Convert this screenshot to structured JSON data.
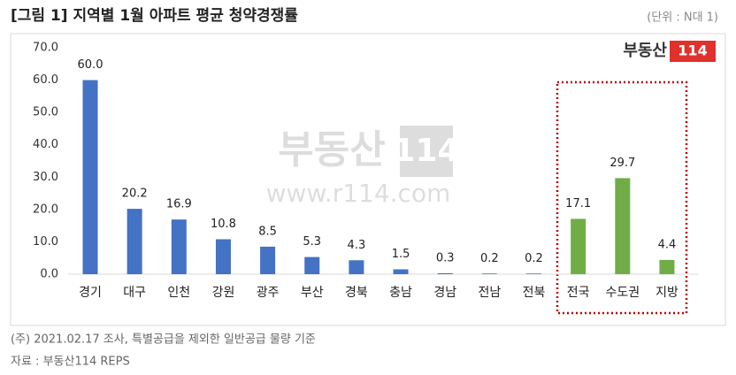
{
  "chart_data": {
    "type": "bar",
    "title": "[그림 1] 지역별 1월 아파트 평균 청약경쟁률",
    "subtitle": "(단위 : N대 1)",
    "categories": [
      "경기",
      "대구",
      "인천",
      "강원",
      "광주",
      "부산",
      "경북",
      "충남",
      "경남",
      "전남",
      "전북",
      "전국",
      "수도권",
      "지방"
    ],
    "values": [
      60.0,
      20.2,
      16.9,
      10.8,
      8.5,
      5.3,
      4.3,
      1.5,
      0.3,
      0.2,
      0.2,
      17.1,
      29.7,
      4.4
    ],
    "value_labels": [
      "60.0",
      "20.2",
      "16.9",
      "10.8",
      "8.5",
      "5.3",
      "4.3",
      "1.5",
      "0.3",
      "0.2",
      "0.2",
      "17.1",
      "29.7",
      "4.4"
    ],
    "colors": [
      "#4472c4",
      "#4472c4",
      "#4472c4",
      "#4472c4",
      "#4472c4",
      "#4472c4",
      "#4472c4",
      "#4472c4",
      "#4472c4",
      "#4472c4",
      "#4472c4",
      "#70ad47",
      "#70ad47",
      "#70ad47"
    ],
    "ylim": [
      0,
      70
    ],
    "yticks": [
      {
        "value": 0,
        "label": "0.0"
      },
      {
        "value": 10,
        "label": "10.0"
      },
      {
        "value": 20,
        "label": "20.0"
      },
      {
        "value": 30,
        "label": "30.0"
      },
      {
        "value": 40,
        "label": "40.0"
      },
      {
        "value": 50,
        "label": "50.0"
      },
      {
        "value": 60,
        "label": "60.0"
      },
      {
        "value": 70,
        "label": "70.0"
      }
    ],
    "grid": false,
    "logo": {
      "name": "부동산",
      "number": "114"
    },
    "watermark": {
      "name": "부동산",
      "number": "114",
      "url": "www.r114.com"
    },
    "notes": [
      "(주) 2021.02.17 조사, 특별공급을 제외한 일반공급 물량 기준",
      "자료 : 부동산114 REPS"
    ]
  }
}
